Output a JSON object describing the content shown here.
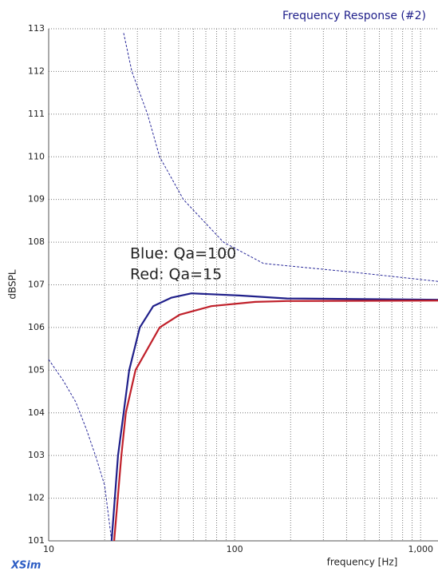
{
  "chart_data": {
    "type": "line",
    "title": "Frequency Response (#2)",
    "xlabel": "frequency [Hz]",
    "ylabel": "dBSPL",
    "brand": "XSim",
    "annotations": [
      "Blue: Qa=100",
      "Red: Qa=15"
    ],
    "xscale": "log",
    "xlim": [
      10,
      1240
    ],
    "xticks": [
      10,
      100,
      {
        "value": 1000,
        "label": "1,000"
      }
    ],
    "xminorticks": [
      20,
      30,
      40,
      50,
      60,
      70,
      80,
      90,
      200,
      300,
      400,
      500,
      600,
      700,
      800,
      900
    ],
    "ylim": [
      101,
      113
    ],
    "yticks": [
      101,
      102,
      103,
      104,
      105,
      106,
      107,
      108,
      109,
      110,
      111,
      112,
      113
    ],
    "grid": true,
    "series": [
      {
        "color": "#2a2a9a",
        "width": 1,
        "dashed": true,
        "x": [
          10,
          12,
          14,
          16,
          18,
          20,
          21.8,
          24.8,
          25.3,
          28,
          34,
          39.5,
          53,
          87,
          143,
          424,
          1240
        ],
        "values": [
          105.25,
          104.75,
          104.25,
          103.6,
          102.95,
          102.3,
          101,
          null,
          112.9,
          112,
          111,
          110,
          109,
          108,
          107.5,
          107.3,
          107.08
        ]
      },
      {
        "color": "#1f1f8a",
        "width": 2.2,
        "dashed": false,
        "x": [
          21.8,
          23.6,
          25.3,
          27.1,
          30.9,
          36.5,
          45.8,
          58.6,
          106,
          191,
          1240
        ],
        "values": [
          101,
          103,
          104,
          105,
          106,
          106.5,
          106.7,
          106.8,
          106.75,
          106.68,
          106.65
        ]
      },
      {
        "color": "#c0202a",
        "width": 2.2,
        "dashed": false,
        "x": [
          22.5,
          24.6,
          26,
          29.3,
          39.5,
          50.6,
          75,
          129,
          191,
          1240
        ],
        "values": [
          101,
          103,
          104,
          105,
          106,
          106.3,
          106.5,
          106.6,
          106.62,
          106.63
        ]
      }
    ]
  }
}
